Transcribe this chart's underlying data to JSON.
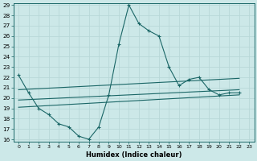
{
  "title": "",
  "xlabel": "Humidex (Indice chaleur)",
  "ylabel": "",
  "bg_color": "#cce8e8",
  "line_color": "#1a6666",
  "grid_color": "#b8d8d8",
  "ylim": [
    16,
    29
  ],
  "xlim": [
    -0.5,
    23.5
  ],
  "yticks": [
    16,
    17,
    18,
    19,
    20,
    21,
    22,
    23,
    24,
    25,
    26,
    27,
    28,
    29
  ],
  "xticks": [
    0,
    1,
    2,
    3,
    4,
    5,
    6,
    7,
    8,
    9,
    10,
    11,
    12,
    13,
    14,
    15,
    16,
    17,
    18,
    19,
    20,
    21,
    22,
    23
  ],
  "series1": [
    [
      0,
      22.2
    ],
    [
      1,
      20.5
    ],
    [
      2,
      19.0
    ],
    [
      3,
      18.4
    ],
    [
      4,
      17.5
    ],
    [
      5,
      17.2
    ],
    [
      6,
      16.3
    ],
    [
      7,
      16.0
    ],
    [
      8,
      17.2
    ],
    [
      9,
      20.3
    ],
    [
      10,
      25.2
    ],
    [
      11,
      29.0
    ],
    [
      12,
      27.2
    ],
    [
      13,
      26.5
    ],
    [
      14,
      26.0
    ],
    [
      15,
      23.0
    ],
    [
      16,
      21.2
    ],
    [
      17,
      21.8
    ],
    [
      18,
      22.0
    ],
    [
      19,
      20.8
    ],
    [
      20,
      20.3
    ],
    [
      21,
      20.5
    ],
    [
      22,
      20.5
    ]
  ],
  "series2_straight": [
    [
      0,
      20.8
    ],
    [
      22,
      21.9
    ]
  ],
  "series3_straight": [
    [
      0,
      19.8
    ],
    [
      22,
      20.8
    ]
  ],
  "series4_straight": [
    [
      0,
      19.1
    ],
    [
      22,
      20.3
    ]
  ],
  "marker_s1": [
    0,
    1,
    2,
    3,
    4,
    5,
    6,
    7,
    8,
    9,
    10,
    11,
    12,
    13,
    14,
    15,
    16,
    17,
    18,
    19,
    20,
    21,
    22
  ],
  "marker_s2": [
    0,
    9,
    18,
    22
  ],
  "marker_s3": [
    0,
    9,
    18,
    22
  ],
  "marker_s4": [
    0,
    9,
    18,
    22
  ]
}
